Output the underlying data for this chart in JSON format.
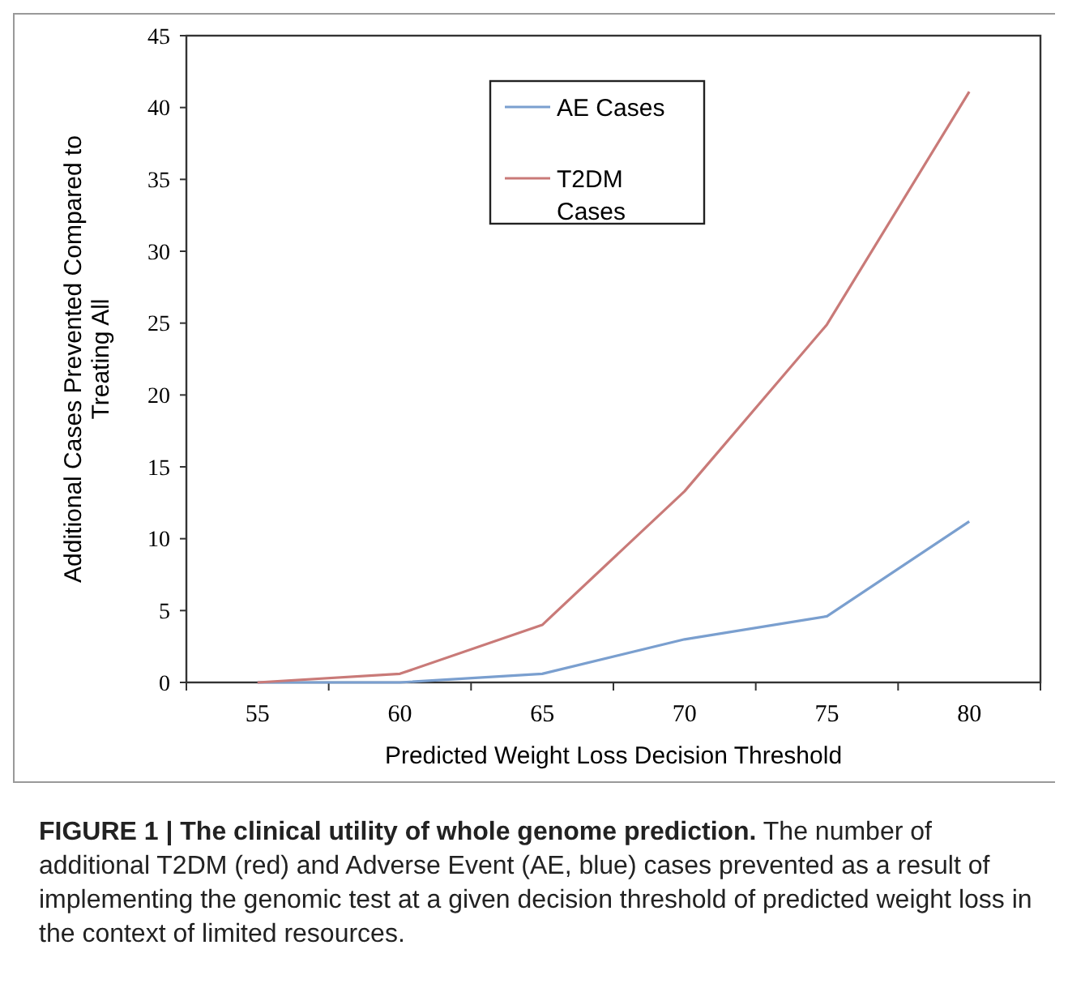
{
  "chart_data": {
    "type": "line",
    "title": "FIGURE 1 | The clinical utility of whole genome prediction.",
    "annotations": [
      "The number of additional T2DM (red) and Adverse Event (AE, blue) cases prevented as a result of implementing the genomic test at a given decision threshold of predicted weight loss in the context of limited resources."
    ],
    "xlabel": "Predicted Weight Loss Decision Threshold",
    "ylabel": "Additional Cases Prevented Compared to Treating All",
    "categories": [
      "55",
      "60",
      "65",
      "70",
      "75",
      "80"
    ],
    "series": [
      {
        "name": "AE Cases",
        "color": "#7a9fcf",
        "values": [
          0,
          0,
          0.6,
          3.0,
          4.6,
          11.2
        ]
      },
      {
        "name": "T2DM Cases",
        "color": "#c97a78",
        "values": [
          0,
          0.6,
          4.0,
          13.3,
          24.9,
          41.1
        ]
      }
    ],
    "ylim": [
      0,
      45
    ],
    "yticks": [
      0,
      5,
      10,
      15,
      20,
      25,
      30,
      35,
      40,
      45
    ],
    "grid": false,
    "legend": "top",
    "marker": "none",
    "line_style": "solid"
  }
}
